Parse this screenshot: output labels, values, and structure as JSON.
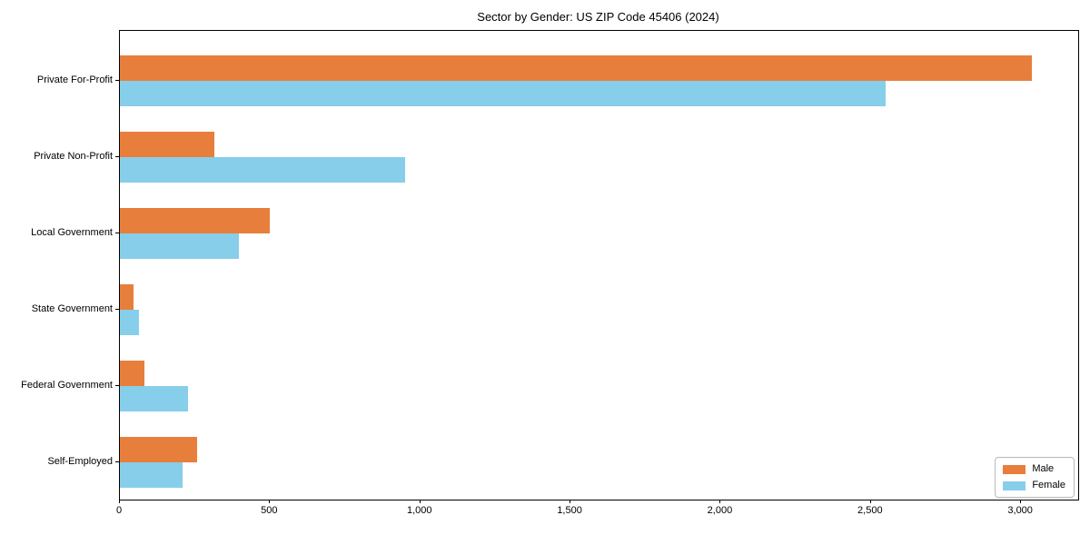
{
  "chart_data": {
    "type": "bar",
    "orientation": "horizontal",
    "title": "Sector by Gender: US ZIP Code 45406 (2024)",
    "categories": [
      "Private For-Profit",
      "Private Non-Profit",
      "Local Government",
      "State Government",
      "Federal Government",
      "Self-Employed"
    ],
    "series": [
      {
        "name": "Male",
        "color": "#e87e3c",
        "values": [
          3035,
          315,
          500,
          45,
          82,
          257
        ]
      },
      {
        "name": "Female",
        "color": "#87ceeb",
        "values": [
          2550,
          950,
          395,
          62,
          227,
          208
        ]
      }
    ],
    "xlabel": "",
    "ylabel": "",
    "xlim": [
      0,
      3190
    ],
    "xticks": [
      0,
      500,
      1000,
      1500,
      2000,
      2500,
      3000
    ],
    "xtick_labels": [
      "0",
      "500",
      "1,000",
      "1,500",
      "2,000",
      "2,500",
      "3,000"
    ],
    "grid": false,
    "legend_position": "lower right",
    "spine_color": "#000000",
    "background_color": "#ffffff"
  }
}
